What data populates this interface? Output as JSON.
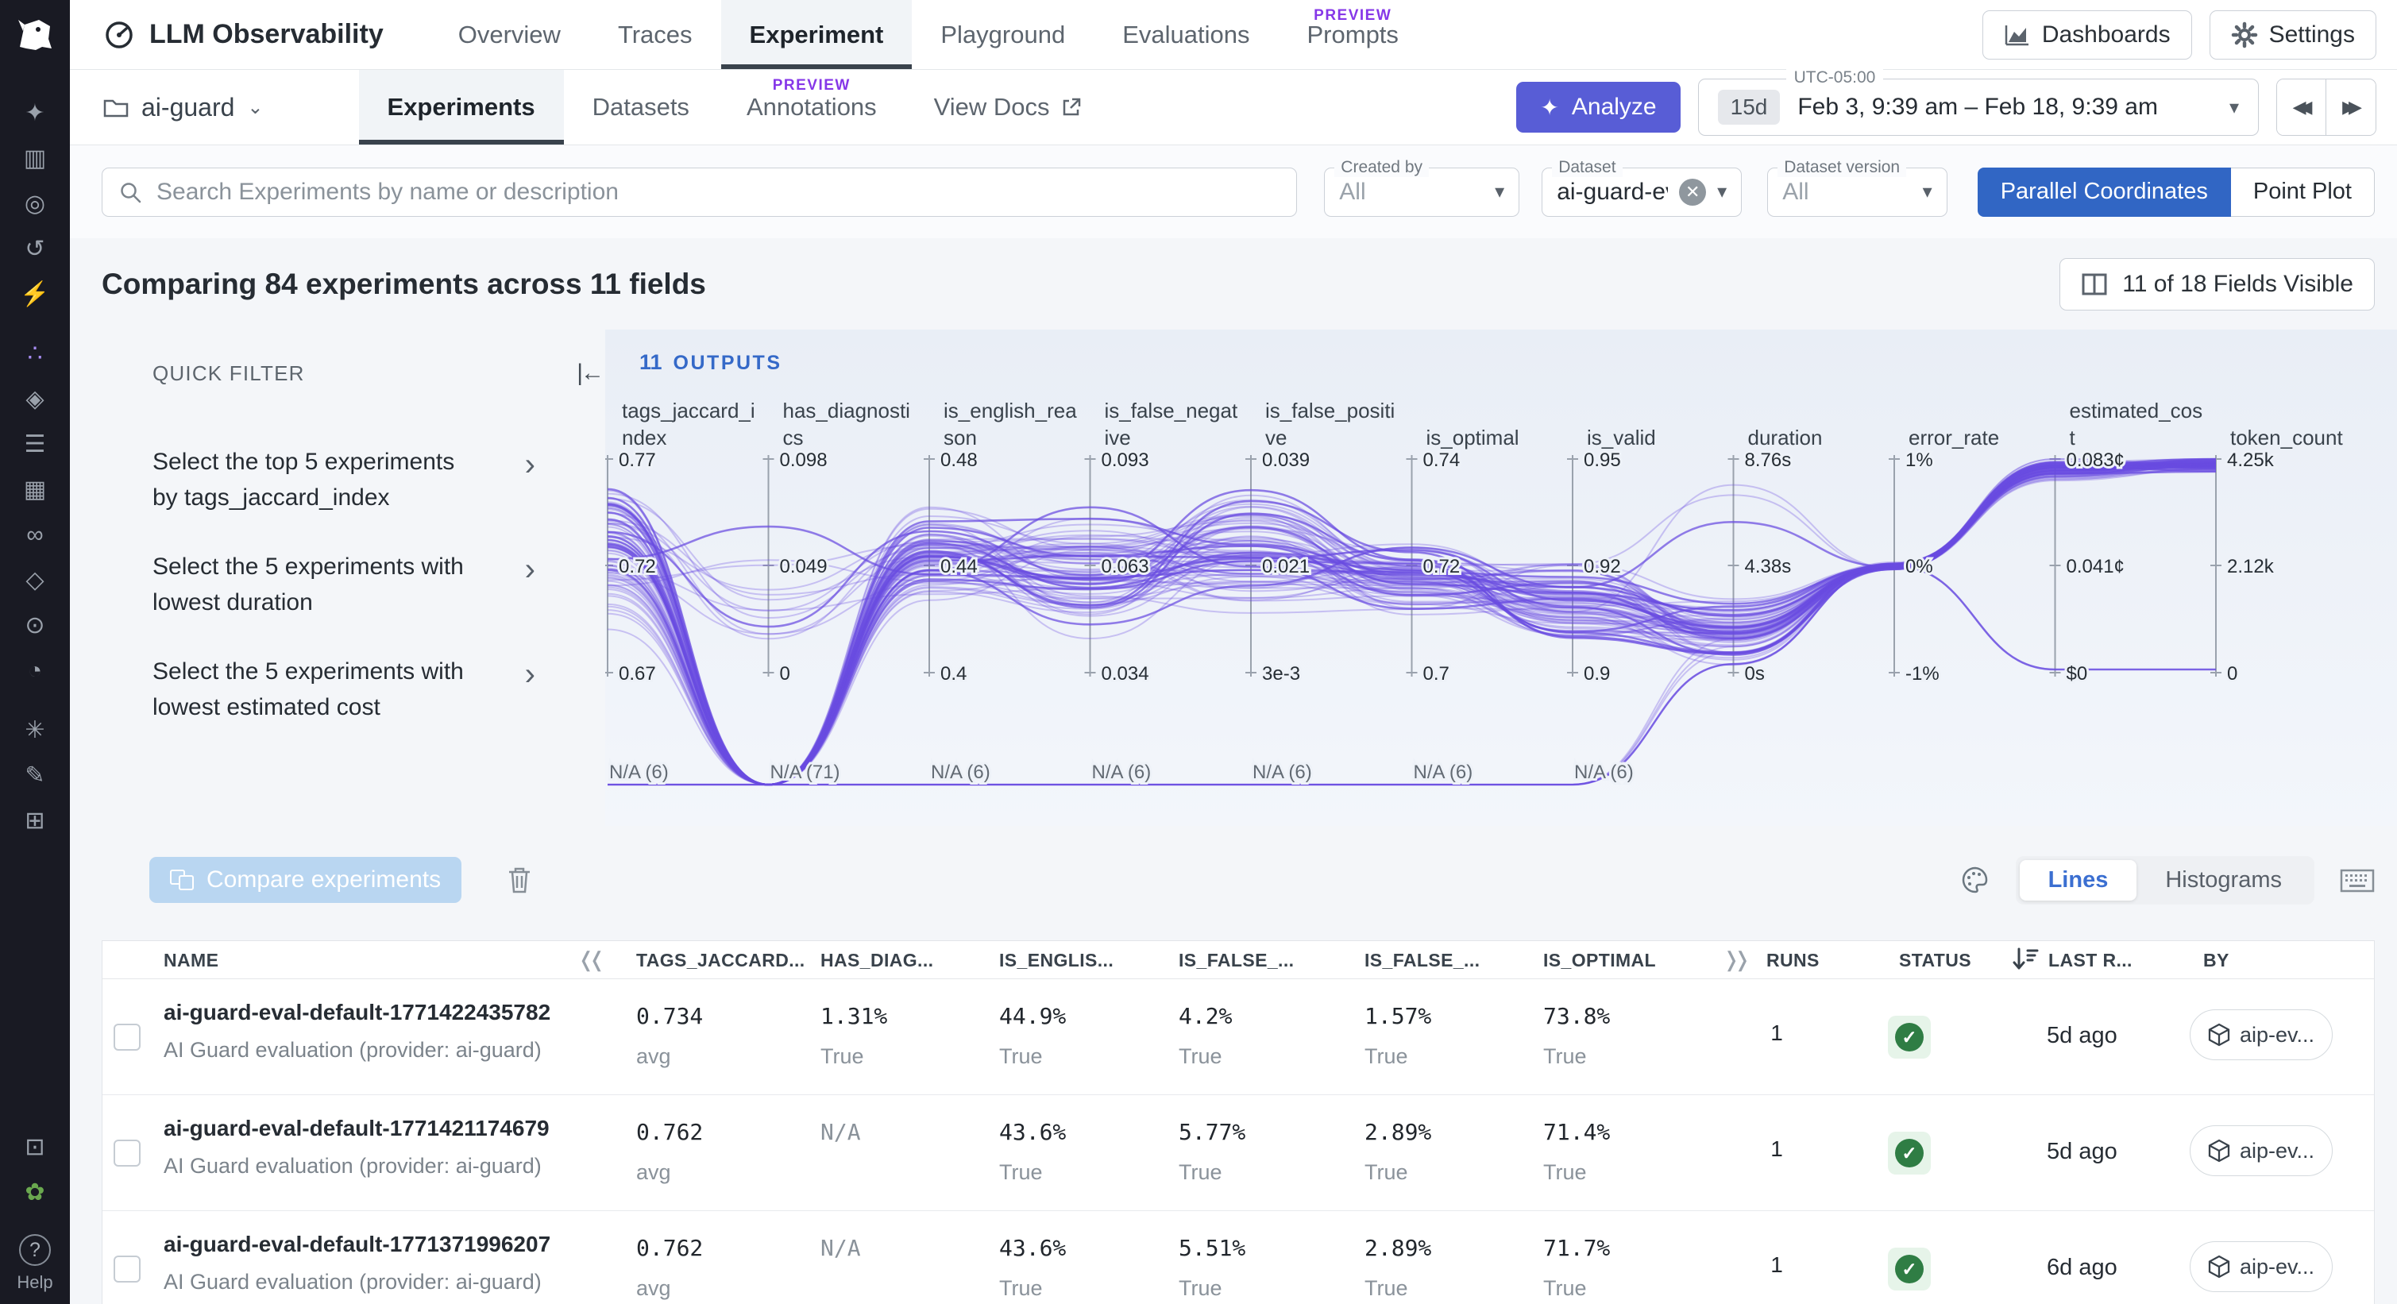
{
  "app": {
    "title": "LLM Observability"
  },
  "colors": {
    "accent_purple": "#585dd6",
    "accent_blue": "#3166c4",
    "preview_purple": "#8637e8",
    "status_green": "#2f7d44"
  },
  "sidebar": {
    "icons": [
      "sparkle",
      "bar-chart",
      "target",
      "history",
      "bolt",
      "dots-cluster",
      "layers",
      "list",
      "grid",
      "infinity",
      "diamond",
      "scope",
      "gauge",
      "bug",
      "pencil",
      "grid-plus"
    ],
    "bottom_icons": [
      "blocks",
      "plant"
    ],
    "help_label": "Help"
  },
  "topnav": {
    "tabs": [
      {
        "label": "Overview"
      },
      {
        "label": "Traces"
      },
      {
        "label": "Experiment",
        "active": true
      },
      {
        "label": "Playground"
      },
      {
        "label": "Evaluations"
      },
      {
        "label": "Prompts",
        "preview": "PREVIEW"
      }
    ],
    "dashboards_label": "Dashboards",
    "settings_label": "Settings"
  },
  "projectbar": {
    "project": "ai-guard",
    "tabs": [
      {
        "label": "Experiments",
        "active": true
      },
      {
        "label": "Datasets"
      },
      {
        "label": "Annotations",
        "preview": "PREVIEW"
      },
      {
        "label": "View Docs",
        "external": true
      }
    ],
    "analyze_label": "Analyze",
    "timezone": "UTC-05:00",
    "range_chip": "15d",
    "range_text": "Feb 3, 9:39 am – Feb 18, 9:39 am"
  },
  "filters": {
    "search_placeholder": "Search Experiments by name or description",
    "created_by": {
      "label": "Created by",
      "value": "All"
    },
    "dataset": {
      "label": "Dataset",
      "value": "ai-guard-ev..."
    },
    "dataset_version": {
      "label": "Dataset version",
      "value": "All"
    },
    "view_toggle": {
      "options": [
        "Parallel Coordinates",
        "Point Plot"
      ],
      "active": "Parallel Coordinates"
    }
  },
  "summary": {
    "title": "Comparing 84 experiments across 11 fields",
    "fields_button": "11 of 18 Fields Visible"
  },
  "quick_filter": {
    "title": "QUICK FILTER",
    "items": [
      {
        "line1": "Select the top 5 experiments",
        "line2": "by tags_jaccard_index"
      },
      {
        "line1": "Select the 5 experiments with",
        "line2": "lowest duration"
      },
      {
        "line1": "Select the 5 experiments with",
        "line2": "lowest estimated cost"
      }
    ]
  },
  "chart_data": {
    "type": "parallel-coordinates",
    "group_count": "11",
    "group_label": "OUTPUTS",
    "line_count": 84,
    "line_color": "#6a4ce0",
    "axes": [
      {
        "label": "tags_jaccard_index",
        "ticks": [
          "0.77",
          "0.72",
          "0.67"
        ],
        "na": "N/A (6)",
        "na_count": 6
      },
      {
        "label": "has_diagnostics",
        "ticks": [
          "0.098",
          "0.049",
          "0"
        ],
        "na": "N/A (71)",
        "na_count": 71
      },
      {
        "label": "is_english_reason",
        "ticks": [
          "0.48",
          "0.44",
          "0.4"
        ],
        "na": "N/A (6)",
        "na_count": 6
      },
      {
        "label": "is_false_negative",
        "ticks": [
          "0.093",
          "0.063",
          "0.034"
        ],
        "na": "N/A (6)",
        "na_count": 6
      },
      {
        "label": "is_false_positive",
        "ticks": [
          "0.039",
          "0.021",
          "3e-3"
        ],
        "na": "N/A (6)",
        "na_count": 6
      },
      {
        "label": "is_optimal",
        "ticks": [
          "0.74",
          "0.72",
          "0.7"
        ],
        "na": "N/A (6)",
        "na_count": 6
      },
      {
        "label": "is_valid",
        "ticks": [
          "0.95",
          "0.92",
          "0.9"
        ],
        "na": "N/A (6)",
        "na_count": 6
      },
      {
        "label": "duration",
        "ticks": [
          "8.76s",
          "4.38s",
          "0s"
        ],
        "na": null,
        "na_count": 0
      },
      {
        "label": "error_rate",
        "ticks": [
          "1%",
          "0%",
          "-1%"
        ],
        "na": null,
        "na_count": 0
      },
      {
        "label": "estimated_cost",
        "ticks": [
          "0.083¢",
          "0.041¢",
          "$0"
        ],
        "na": null,
        "na_count": 0
      },
      {
        "label": "token_count",
        "ticks": [
          "4.25k",
          "2.12k",
          "0"
        ],
        "na": null,
        "na_count": 0
      }
    ]
  },
  "toolbar": {
    "compare_label": "Compare experiments",
    "modes": [
      "Lines",
      "Histograms"
    ],
    "active_mode": "Lines"
  },
  "table": {
    "columns": [
      "NAME",
      "TAGS_JACCARD...",
      "HAS_DIAG...",
      "IS_ENGLIS...",
      "IS_FALSE_...",
      "IS_FALSE_...",
      "IS_OPTIMAL",
      "RUNS",
      "STATUS",
      "LAST R...",
      "BY"
    ],
    "rows": [
      {
        "name": "ai-guard-eval-default-1771422435782",
        "description": "AI Guard evaluation (provider: ai-guard)",
        "metrics": [
          {
            "v": "0.734",
            "s": "avg"
          },
          {
            "v": "1.31%",
            "s": "True"
          },
          {
            "v": "44.9%",
            "s": "True"
          },
          {
            "v": "4.2%",
            "s": "True"
          },
          {
            "v": "1.57%",
            "s": "True"
          },
          {
            "v": "73.8%",
            "s": "True"
          }
        ],
        "runs": "1",
        "status": "passed",
        "last_run": "5d ago",
        "by": "aip-ev..."
      },
      {
        "name": "ai-guard-eval-default-1771421174679",
        "description": "AI Guard evaluation (provider: ai-guard)",
        "metrics": [
          {
            "v": "0.762",
            "s": "avg"
          },
          {
            "v": "N/A",
            "s": ""
          },
          {
            "v": "43.6%",
            "s": "True"
          },
          {
            "v": "5.77%",
            "s": "True"
          },
          {
            "v": "2.89%",
            "s": "True"
          },
          {
            "v": "71.4%",
            "s": "True"
          }
        ],
        "runs": "1",
        "status": "passed",
        "last_run": "5d ago",
        "by": "aip-ev..."
      },
      {
        "name": "ai-guard-eval-default-1771371996207",
        "description": "AI Guard evaluation (provider: ai-guard)",
        "metrics": [
          {
            "v": "0.762",
            "s": "avg"
          },
          {
            "v": "N/A",
            "s": ""
          },
          {
            "v": "43.6%",
            "s": "True"
          },
          {
            "v": "5.51%",
            "s": "True"
          },
          {
            "v": "2.89%",
            "s": "True"
          },
          {
            "v": "71.7%",
            "s": "True"
          }
        ],
        "runs": "1",
        "status": "passed",
        "last_run": "6d ago",
        "by": "aip-ev..."
      }
    ]
  }
}
